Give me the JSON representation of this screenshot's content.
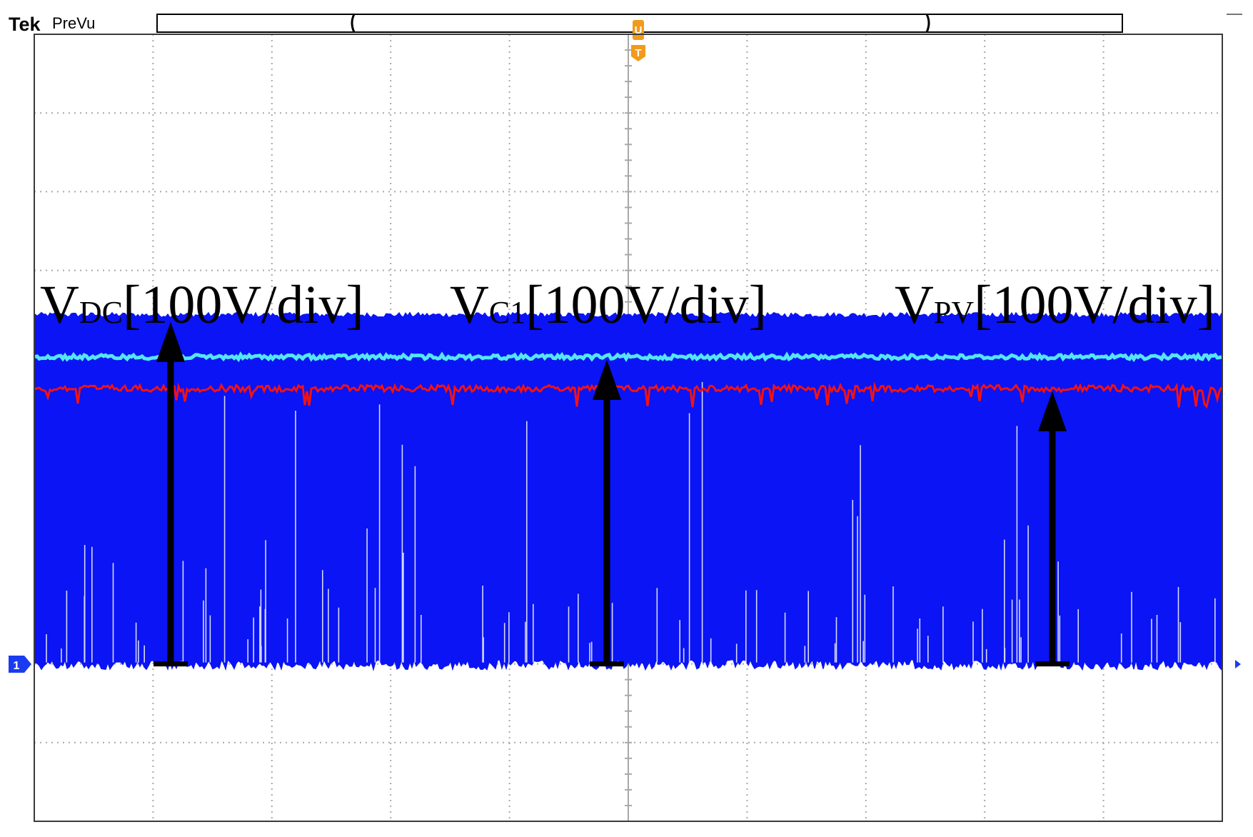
{
  "header": {
    "brand": "Tek",
    "mode": "PreVu"
  },
  "markers": {
    "trigger_position": "U",
    "trigger": "T",
    "channel": "1"
  },
  "colors": {
    "background": "#ffffff",
    "graticule": "#a8a8a8",
    "frame": "#3a3a3a",
    "vdc_band": "#0a14f5",
    "vdc_spikes": "#e8ecff",
    "vc1_trace": "#55e6f2",
    "vpv_trace": "#f21212",
    "arrows": "#000000",
    "trigger_marker": "#f29a1a",
    "channel_marker": "#1a3cf0"
  },
  "chart_data": {
    "type": "line",
    "title": "",
    "xlabel": "",
    "ylabel": "",
    "grid": true,
    "x_divisions": 10,
    "y_divisions": 10,
    "ylim_div": [
      -2,
      8
    ],
    "series": [
      {
        "name": "VDC",
        "label_main": "V",
        "label_sub": "DC",
        "scale": "[100V/div]",
        "color": "#0a14f5",
        "style": "switching band",
        "low_div": 0,
        "high_div": 4.4
      },
      {
        "name": "VC1",
        "label_main": "V",
        "label_sub": "C1",
        "scale": "[100V/div]",
        "color": "#55e6f2",
        "style": "flat",
        "level_div": 3.9
      },
      {
        "name": "VPV",
        "label_main": "V",
        "label_sub": "PV",
        "scale": "[100V/div]",
        "color": "#f21212",
        "style": "flat",
        "level_div": 3.5
      }
    ]
  }
}
